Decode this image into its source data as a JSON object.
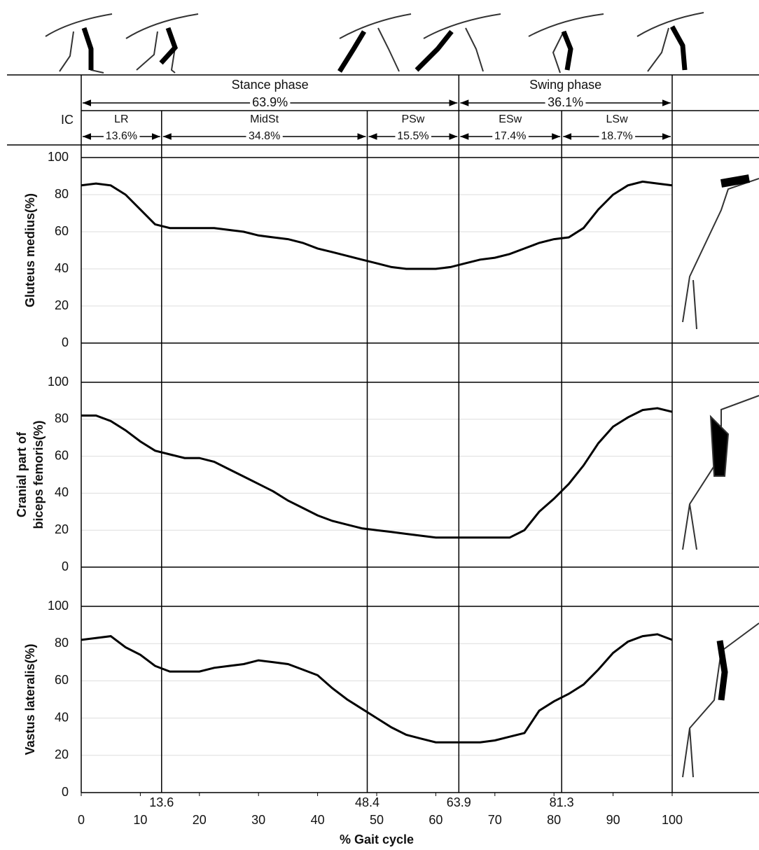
{
  "header": {
    "phases": [
      {
        "label": "Stance phase",
        "percent": "63.9%"
      },
      {
        "label": "Swing phase",
        "percent": "36.1%"
      }
    ],
    "ic": "IC",
    "subphases": [
      {
        "label": "LR",
        "percent": "13.6%"
      },
      {
        "label": "MidSt",
        "percent": "34.8%"
      },
      {
        "label": "PSw",
        "percent": "15.5%"
      },
      {
        "label": "ESw",
        "percent": "17.4%"
      },
      {
        "label": "LSw",
        "percent": "18.7%"
      }
    ]
  },
  "phase_boundaries": [
    13.6,
    48.4,
    63.9,
    81.3
  ],
  "chart_data": [
    {
      "type": "line",
      "ylabel": [
        "Gluteus medius(%)"
      ],
      "color": "#000000",
      "xlim": [
        0,
        100
      ],
      "ylim": [
        0,
        100
      ],
      "yticks": [
        0,
        20,
        40,
        60,
        80,
        100
      ],
      "grid": true,
      "x": [
        0,
        2.5,
        5,
        7.5,
        10,
        12.5,
        15,
        17.5,
        20,
        22.5,
        25,
        27.5,
        30,
        32.5,
        35,
        37.5,
        40,
        42.5,
        45,
        47.5,
        50,
        52.5,
        55,
        57.5,
        60,
        62.5,
        65,
        67.5,
        70,
        72.5,
        75,
        77.5,
        80,
        82.5,
        85,
        87.5,
        90,
        92.5,
        95,
        97.5,
        100
      ],
      "values": [
        85,
        86,
        85,
        80,
        72,
        64,
        62,
        62,
        62,
        62,
        61,
        60,
        58,
        57,
        56,
        54,
        51,
        49,
        47,
        45,
        43,
        41,
        40,
        40,
        40,
        41,
        43,
        45,
        46,
        48,
        51,
        54,
        56,
        57,
        62,
        72,
        80,
        85,
        87,
        86,
        85
      ]
    },
    {
      "type": "line",
      "ylabel": [
        "Cranial part of",
        "biceps femoris(%)"
      ],
      "color": "#000000",
      "xlim": [
        0,
        100
      ],
      "ylim": [
        0,
        100
      ],
      "yticks": [
        0,
        20,
        40,
        60,
        80,
        100
      ],
      "grid": true,
      "x": [
        0,
        2.5,
        5,
        7.5,
        10,
        12.5,
        15,
        17.5,
        20,
        22.5,
        25,
        27.5,
        30,
        32.5,
        35,
        37.5,
        40,
        42.5,
        45,
        47.5,
        50,
        52.5,
        55,
        57.5,
        60,
        62.5,
        65,
        67.5,
        70,
        72.5,
        75,
        77.5,
        80,
        82.5,
        85,
        87.5,
        90,
        92.5,
        95,
        97.5,
        100
      ],
      "values": [
        82,
        82,
        79,
        74,
        68,
        63,
        61,
        59,
        59,
        57,
        53,
        49,
        45,
        41,
        36,
        32,
        28,
        25,
        23,
        21,
        20,
        19,
        18,
        17,
        16,
        16,
        16,
        16,
        16,
        16,
        20,
        30,
        37,
        45,
        55,
        67,
        76,
        81,
        85,
        86,
        84
      ]
    },
    {
      "type": "line",
      "ylabel": [
        "Vastus lateralis(%)"
      ],
      "color": "#000000",
      "xlim": [
        0,
        100
      ],
      "ylim": [
        0,
        100
      ],
      "yticks": [
        0,
        20,
        40,
        60,
        80,
        100
      ],
      "grid": true,
      "xticks": [
        0,
        10,
        20,
        30,
        40,
        50,
        60,
        70,
        80,
        90,
        100
      ],
      "xlabel": "% Gait cycle",
      "x": [
        0,
        2.5,
        5,
        7.5,
        10,
        12.5,
        15,
        17.5,
        20,
        22.5,
        25,
        27.5,
        30,
        32.5,
        35,
        37.5,
        40,
        42.5,
        45,
        47.5,
        50,
        52.5,
        55,
        57.5,
        60,
        62.5,
        65,
        67.5,
        70,
        72.5,
        75,
        77.5,
        80,
        82.5,
        85,
        87.5,
        90,
        92.5,
        95,
        97.5,
        100
      ],
      "values": [
        82,
        83,
        84,
        78,
        74,
        68,
        65,
        65,
        65,
        67,
        68,
        69,
        71,
        70,
        69,
        66,
        63,
        56,
        50,
        45,
        40,
        35,
        31,
        29,
        27,
        27,
        27,
        27,
        28,
        30,
        32,
        44,
        49,
        53,
        58,
        66,
        75,
        81,
        84,
        85,
        82
      ]
    }
  ]
}
